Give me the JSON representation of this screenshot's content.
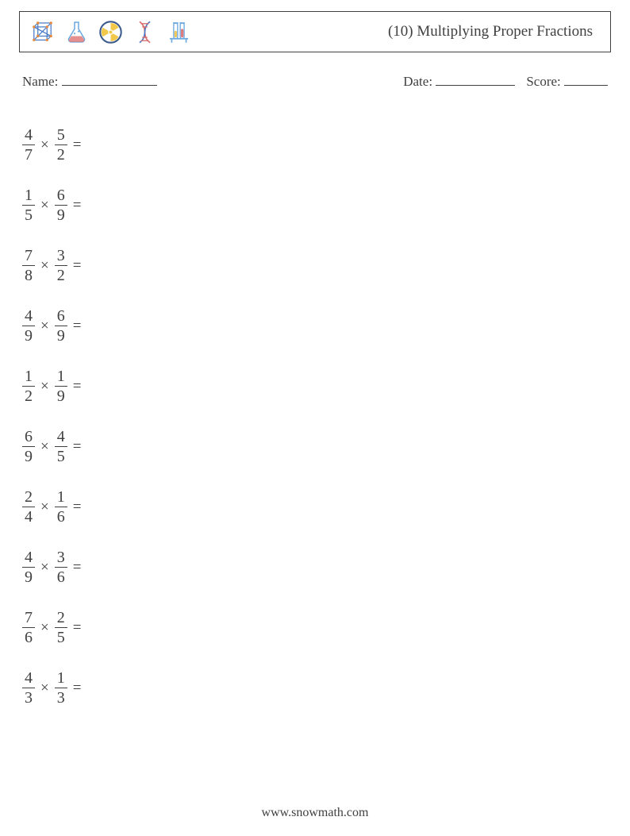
{
  "header": {
    "title": "(10) Multiplying Proper Fractions",
    "icons": [
      {
        "name": "cube-icon",
        "colors": {
          "stroke": "#4a7ac7",
          "accent": "#e88b3c"
        }
      },
      {
        "name": "flask-icon",
        "colors": {
          "flask": "#6aa8e0",
          "liquid": "#e07b7b"
        }
      },
      {
        "name": "radiation-icon",
        "colors": {
          "ring": "#3b5b8c",
          "blade": "#f2c84b",
          "bg": "#ffffff"
        }
      },
      {
        "name": "dna-icon",
        "colors": {
          "strand1": "#d96c6c",
          "strand2": "#4a7ac7"
        }
      },
      {
        "name": "testtubes-icon",
        "colors": {
          "rack": "#6aa8e0",
          "tube1": "#efc95b",
          "tube2": "#e07b7b"
        }
      }
    ]
  },
  "meta": {
    "name_label": "Name:",
    "date_label": "Date:",
    "score_label": "Score:"
  },
  "problems": [
    {
      "f1": {
        "n": "4",
        "d": "7"
      },
      "f2": {
        "n": "5",
        "d": "2"
      }
    },
    {
      "f1": {
        "n": "1",
        "d": "5"
      },
      "f2": {
        "n": "6",
        "d": "9"
      }
    },
    {
      "f1": {
        "n": "7",
        "d": "8"
      },
      "f2": {
        "n": "3",
        "d": "2"
      }
    },
    {
      "f1": {
        "n": "4",
        "d": "9"
      },
      "f2": {
        "n": "6",
        "d": "9"
      }
    },
    {
      "f1": {
        "n": "1",
        "d": "2"
      },
      "f2": {
        "n": "1",
        "d": "9"
      }
    },
    {
      "f1": {
        "n": "6",
        "d": "9"
      },
      "f2": {
        "n": "4",
        "d": "5"
      }
    },
    {
      "f1": {
        "n": "2",
        "d": "4"
      },
      "f2": {
        "n": "1",
        "d": "6"
      }
    },
    {
      "f1": {
        "n": "4",
        "d": "9"
      },
      "f2": {
        "n": "3",
        "d": "6"
      }
    },
    {
      "f1": {
        "n": "7",
        "d": "6"
      },
      "f2": {
        "n": "2",
        "d": "5"
      }
    },
    {
      "f1": {
        "n": "4",
        "d": "3"
      },
      "f2": {
        "n": "1",
        "d": "3"
      }
    }
  ],
  "symbols": {
    "times": "×",
    "equals": "="
  },
  "footer": {
    "url": "www.snowmath.com"
  },
  "style": {
    "text_color": "#404040",
    "background": "#ffffff",
    "title_fontsize": 19,
    "body_fontsize": 17,
    "math_fontsize": 20,
    "problem_row_height": 76
  }
}
